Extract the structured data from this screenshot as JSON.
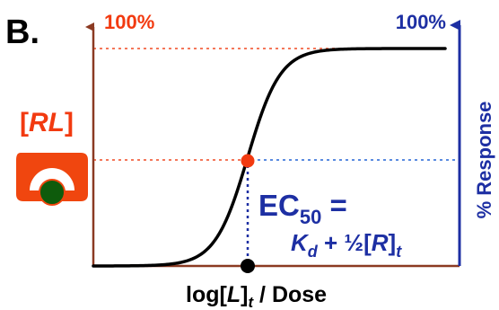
{
  "panel_label": "B.",
  "left_axis_top_label": "100%",
  "right_axis_top_label": "100%",
  "right_axis_title": "% Response",
  "complex_label": {
    "open": "[",
    "name": "RL",
    "close": "]"
  },
  "x_axis_label": {
    "prefix": "log[",
    "var": "L",
    "close": "]",
    "sub": "t",
    "rest": " / Dose"
  },
  "ec50": {
    "line1_main": "EC",
    "line1_sub": "50",
    "line1_eq": " =",
    "line2_K": "K",
    "line2_Ksub": "d",
    "line2_plus": " + ½[",
    "line2_R": "R",
    "line2_close": "]",
    "line2_tsub": "t"
  },
  "colors": {
    "left_axis": "#8b3a22",
    "right_axis": "#1d2fa3",
    "red": "#f23a10",
    "blue": "#1d2fa3",
    "curve": "#000000",
    "complex_fill": "#f0460f",
    "ligand_fill": "#0e5b0c"
  },
  "chart_data": {
    "type": "line",
    "curve": "sigmoid",
    "ec50_fraction_of_max": 0.5,
    "title": "",
    "xlabel": "log[L]t / Dose",
    "ylabel": "% Response"
  }
}
